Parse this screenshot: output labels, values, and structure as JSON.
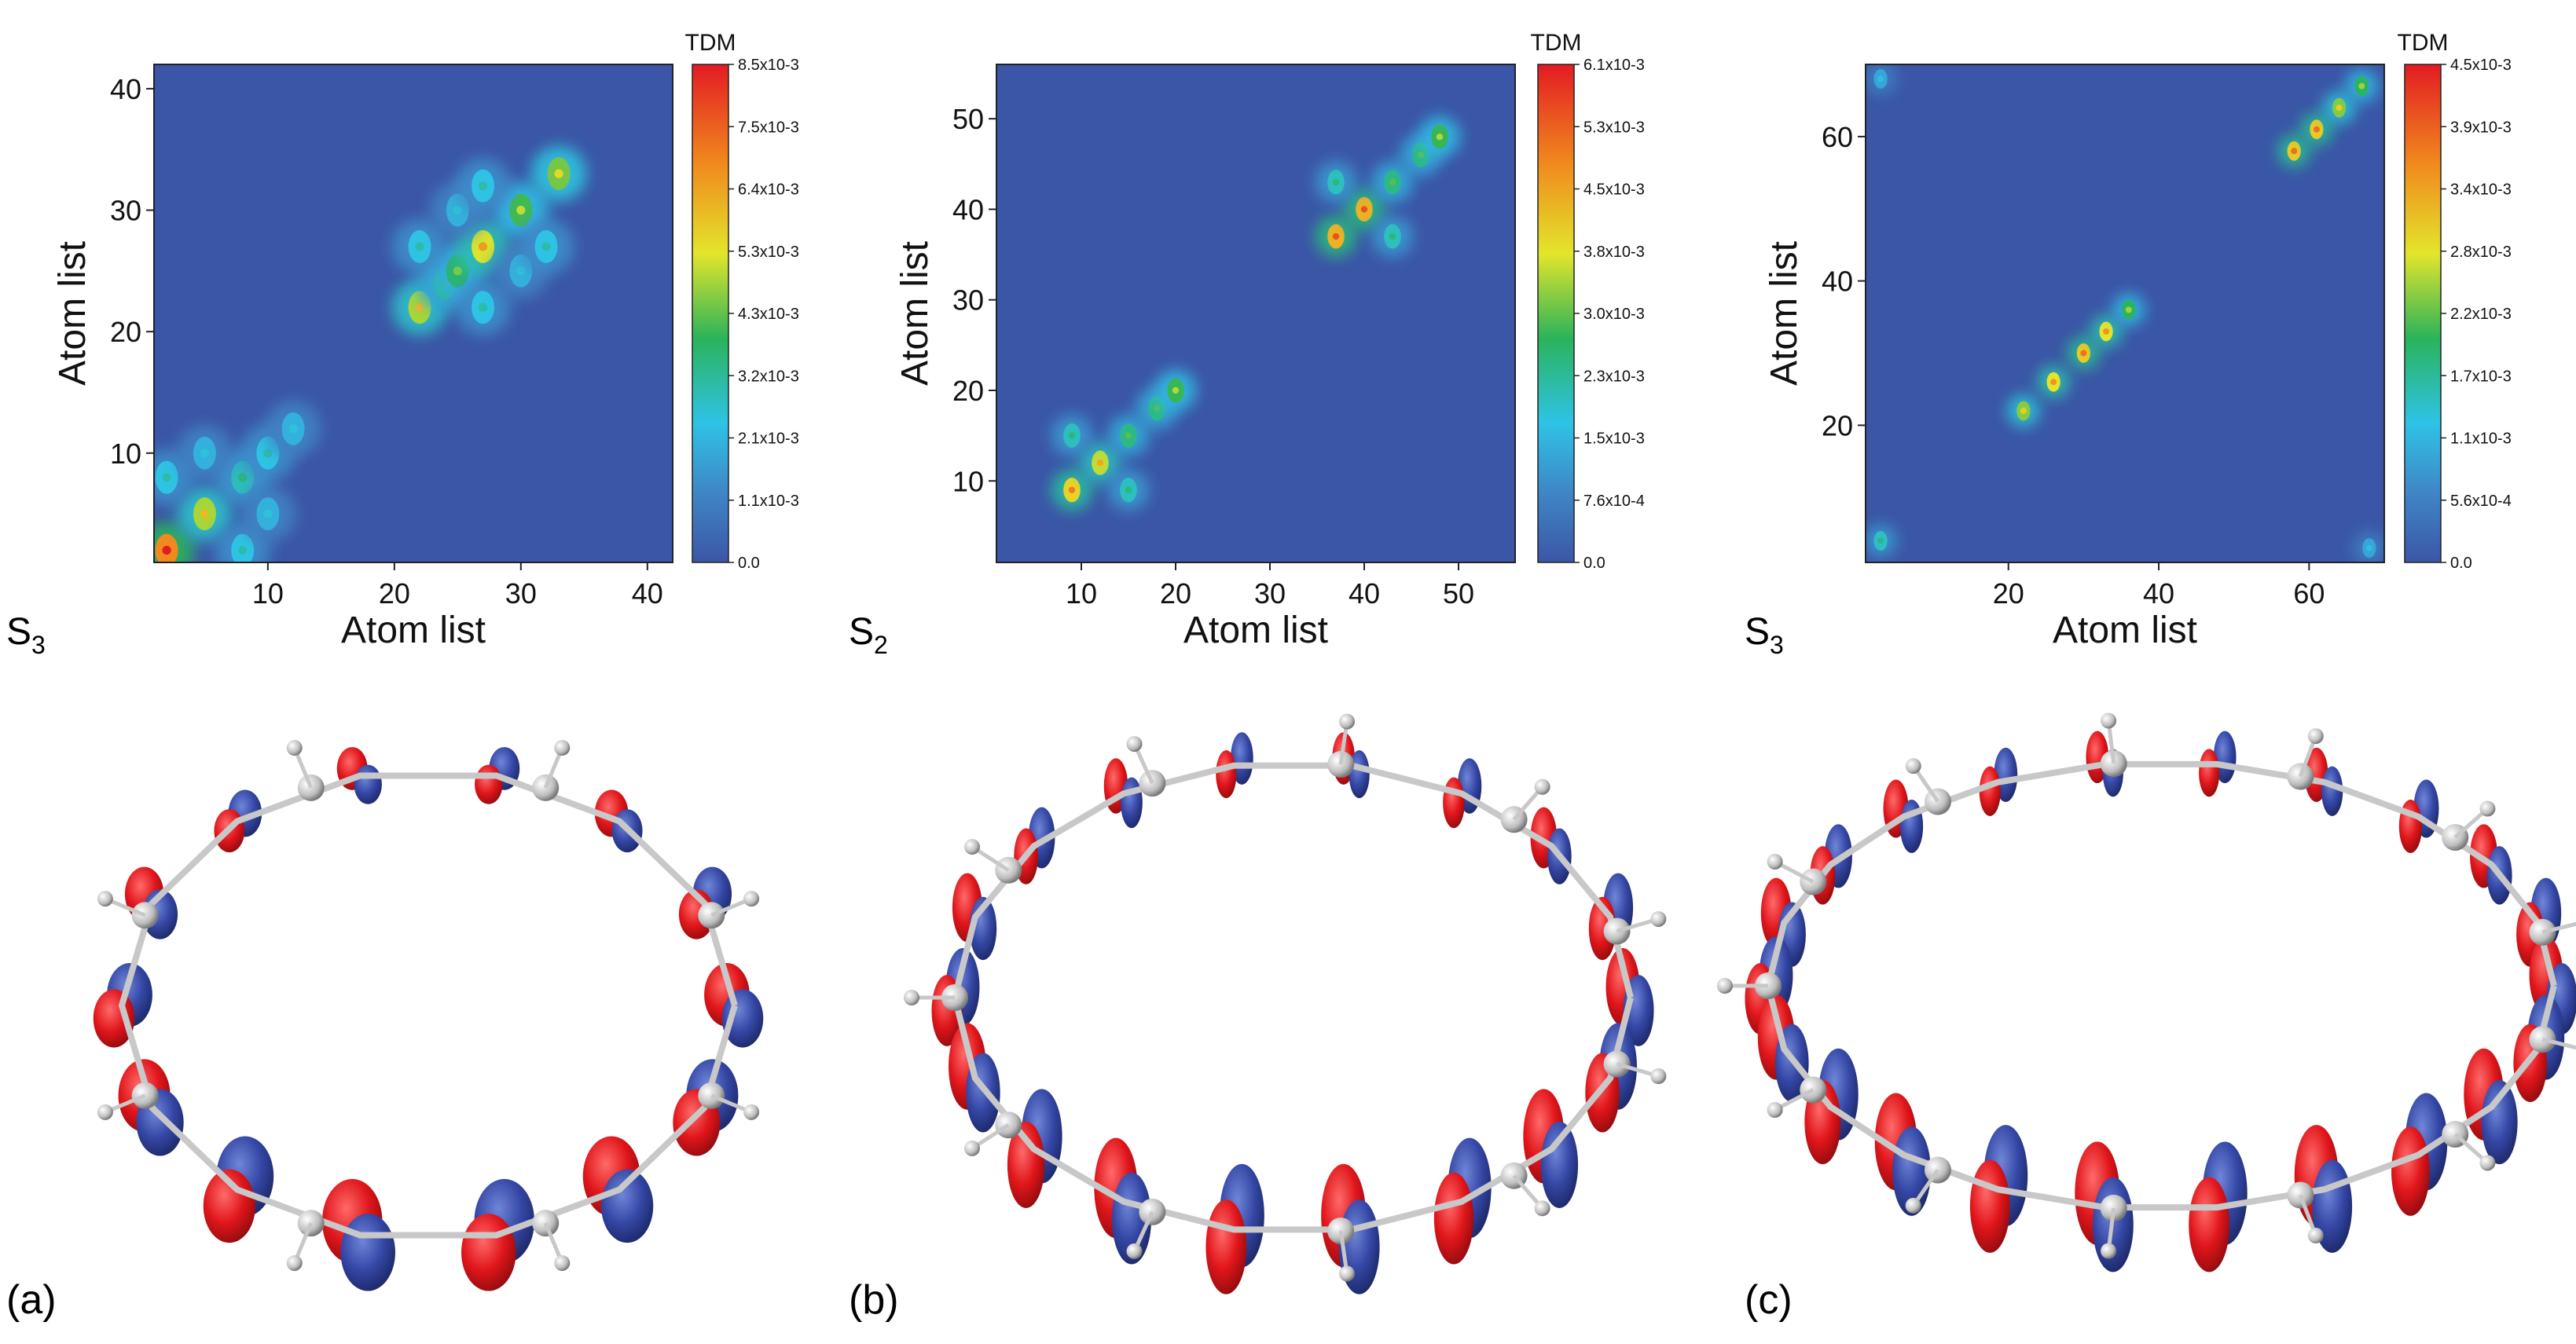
{
  "colors": {
    "colormap": [
      "#3b56a6",
      "#3f86c6",
      "#2ec3e6",
      "#2bb35a",
      "#e3e52b",
      "#f08a1e",
      "#e31b23"
    ],
    "plot_background": "#3b56a6",
    "lobe_red": "#e0161b",
    "lobe_blue": "#3547a5"
  },
  "chart_data": [
    {
      "type": "heatmap",
      "panel": "(a)",
      "state": "S3",
      "state_sub": "3",
      "xlabel": "Atom list",
      "ylabel": "Atom list",
      "xlim": [
        1,
        42
      ],
      "ylim": [
        1,
        42
      ],
      "xticks": [
        10,
        20,
        30,
        40
      ],
      "yticks": [
        10,
        20,
        30,
        40
      ],
      "colorbar": {
        "title": "TDM",
        "min": 0,
        "max": 0.0085,
        "tick_labels": [
          "8.5x10-3",
          "7.5x10-3",
          "6.4x10-3",
          "5.3x10-3",
          "4.3x10-3",
          "3.2x10-3",
          "2.1x10-3",
          "1.1x10-3",
          "0.0"
        ]
      },
      "hotspots": [
        {
          "x": 2,
          "y": 2,
          "v": 0.0085
        },
        {
          "x": 5,
          "y": 5,
          "v": 0.006
        },
        {
          "x": 8,
          "y": 8,
          "v": 0.0035
        },
        {
          "x": 10,
          "y": 10,
          "v": 0.003
        },
        {
          "x": 12,
          "y": 12,
          "v": 0.0025
        },
        {
          "x": 22,
          "y": 22,
          "v": 0.006
        },
        {
          "x": 24,
          "y": 24,
          "v": 0.004
        },
        {
          "x": 25,
          "y": 25,
          "v": 0.0045
        },
        {
          "x": 27,
          "y": 27,
          "v": 0.0065
        },
        {
          "x": 30,
          "y": 30,
          "v": 0.005
        },
        {
          "x": 33,
          "y": 33,
          "v": 0.0055
        },
        {
          "x": 2,
          "y": 8,
          "v": 0.003
        },
        {
          "x": 8,
          "y": 2,
          "v": 0.003
        },
        {
          "x": 5,
          "y": 10,
          "v": 0.0025
        },
        {
          "x": 10,
          "y": 5,
          "v": 0.0025
        },
        {
          "x": 22,
          "y": 27,
          "v": 0.003
        },
        {
          "x": 27,
          "y": 22,
          "v": 0.003
        },
        {
          "x": 30,
          "y": 25,
          "v": 0.0025
        },
        {
          "x": 25,
          "y": 30,
          "v": 0.0025
        },
        {
          "x": 32,
          "y": 27,
          "v": 0.003
        },
        {
          "x": 27,
          "y": 32,
          "v": 0.003
        }
      ]
    },
    {
      "type": "heatmap",
      "panel": "(b)",
      "state": "S2",
      "state_sub": "2",
      "xlabel": "Atom list",
      "ylabel": "Atom list",
      "xlim": [
        1,
        56
      ],
      "ylim": [
        1,
        56
      ],
      "xticks": [
        10,
        20,
        30,
        40,
        50
      ],
      "yticks": [
        10,
        20,
        30,
        40,
        50
      ],
      "colorbar": {
        "title": "TDM",
        "min": 0,
        "max": 0.0061,
        "tick_labels": [
          "6.1x10-3",
          "5.3x10-3",
          "4.5x10-3",
          "3.8x10-3",
          "3.0x10-3",
          "2.3x10-3",
          "1.5x10-3",
          "7.6x10-4",
          "0.0"
        ]
      },
      "hotspots": [
        {
          "x": 9,
          "y": 9,
          "v": 0.005
        },
        {
          "x": 12,
          "y": 12,
          "v": 0.0045
        },
        {
          "x": 15,
          "y": 15,
          "v": 0.003
        },
        {
          "x": 18,
          "y": 18,
          "v": 0.003
        },
        {
          "x": 20,
          "y": 20,
          "v": 0.0035
        },
        {
          "x": 37,
          "y": 37,
          "v": 0.0055
        },
        {
          "x": 40,
          "y": 40,
          "v": 0.0055
        },
        {
          "x": 43,
          "y": 43,
          "v": 0.003
        },
        {
          "x": 46,
          "y": 46,
          "v": 0.003
        },
        {
          "x": 48,
          "y": 48,
          "v": 0.0035
        },
        {
          "x": 9,
          "y": 15,
          "v": 0.0025
        },
        {
          "x": 15,
          "y": 9,
          "v": 0.0025
        },
        {
          "x": 37,
          "y": 43,
          "v": 0.0025
        },
        {
          "x": 43,
          "y": 37,
          "v": 0.0025
        }
      ]
    },
    {
      "type": "heatmap",
      "panel": "(c)",
      "state": "S3",
      "state_sub": "3",
      "xlabel": "Atom list",
      "ylabel": "Atom list",
      "xlim": [
        1,
        70
      ],
      "ylim": [
        1,
        70
      ],
      "xticks": [
        20,
        40,
        60
      ],
      "yticks": [
        20,
        40,
        60
      ],
      "colorbar": {
        "title": "TDM",
        "min": 0,
        "max": 0.0045,
        "tick_labels": [
          "4.5x10-3",
          "3.9x10-3",
          "3.4x10-3",
          "2.8x10-3",
          "2.2x10-3",
          "1.7x10-3",
          "1.1x10-3",
          "5.6x10-4",
          "0.0"
        ]
      },
      "hotspots": [
        {
          "x": 22,
          "y": 22,
          "v": 0.003
        },
        {
          "x": 26,
          "y": 26,
          "v": 0.0035
        },
        {
          "x": 30,
          "y": 30,
          "v": 0.0038
        },
        {
          "x": 33,
          "y": 33,
          "v": 0.0035
        },
        {
          "x": 36,
          "y": 36,
          "v": 0.0025
        },
        {
          "x": 58,
          "y": 58,
          "v": 0.0038
        },
        {
          "x": 61,
          "y": 61,
          "v": 0.0038
        },
        {
          "x": 64,
          "y": 64,
          "v": 0.003
        },
        {
          "x": 67,
          "y": 67,
          "v": 0.0025
        },
        {
          "x": 3,
          "y": 4,
          "v": 0.0018
        },
        {
          "x": 68,
          "y": 3,
          "v": 0.0012
        },
        {
          "x": 3,
          "y": 68,
          "v": 0.0012
        }
      ]
    }
  ],
  "panels": [
    {
      "label": "(a)",
      "state_letter": "S",
      "state_sub": "3",
      "lobes": 14
    },
    {
      "label": "(b)",
      "state_letter": "S",
      "state_sub": "2",
      "lobes": 18
    },
    {
      "label": "(c)",
      "state_letter": "S",
      "state_sub": "3",
      "lobes": 22
    }
  ]
}
